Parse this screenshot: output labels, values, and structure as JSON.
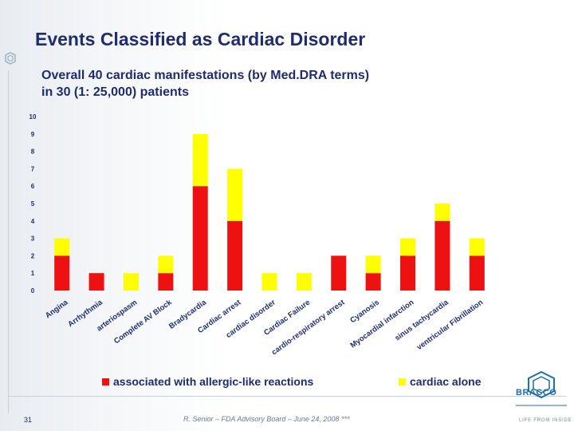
{
  "slide": {
    "title": "Events Classified as Cardiac Disorder",
    "subtitle_line1": "Overall 40 cardiac manifestations (by Med.DRA terms)",
    "subtitle_line2": "in 30 (1: 25,000) patients",
    "footer": "R. Senior – FDA Advisory Board – June 24, 2008 ***",
    "page_number": "31",
    "brand_name": "BRACCO",
    "brand_tagline": "LIFE FROM INSIDE"
  },
  "colors": {
    "allergic": "#ee1111",
    "alone": "#ffff00",
    "title": "#1f2c6e",
    "axis_text": "#1f2c6e"
  },
  "chart_data": {
    "type": "bar",
    "stacked": true,
    "title": "",
    "xlabel": "",
    "ylabel": "",
    "ylim": [
      0,
      10
    ],
    "yticks": [
      0,
      1,
      2,
      3,
      4,
      5,
      6,
      7,
      8,
      9,
      10
    ],
    "grid": false,
    "legend_position": "bottom",
    "categories": [
      "Angina",
      "Arrhythmia",
      "arteriospasm",
      "Complete AV Block",
      "Bradycardia",
      "Cardiac arrest",
      "cardiac disorder",
      "Cardiac Failure",
      "cardio-respiratory arrest",
      "Cyanosis",
      "Myocardial infarction",
      "sinus tachycardia",
      "ventricular Fibrillation"
    ],
    "series": [
      {
        "name": "associated with allergic-like reactions",
        "values": [
          2,
          1,
          0,
          1,
          6,
          4,
          0,
          0,
          2,
          1,
          2,
          4,
          2
        ]
      },
      {
        "name": "cardiac alone",
        "values": [
          1,
          0,
          1,
          1,
          3,
          3,
          1,
          1,
          0,
          1,
          1,
          1,
          1
        ]
      }
    ]
  }
}
